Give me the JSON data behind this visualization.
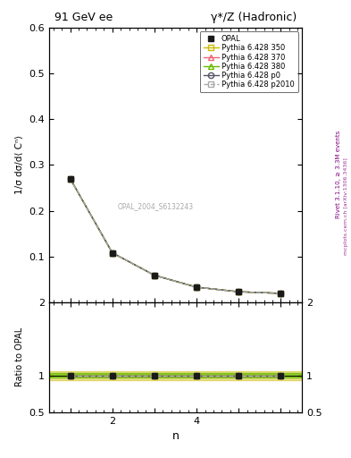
{
  "title_left": "91 GeV ee",
  "title_right": "γ*/Z (Hadronic)",
  "ylabel_main": "1/σ dσ/d⟨ Cⁿ⟩",
  "ylabel_ratio": "Ratio to OPAL",
  "xlabel": "n",
  "rivet_label": "Rivet 3.1.10, ≥ 3.3M events",
  "watermark": "mcplots.cern.ch [arXiv:1306.3436]",
  "ref_label": "OPAL_2004_S6132243",
  "n_values": [
    1,
    2,
    3,
    4,
    5,
    6
  ],
  "opal_y": [
    0.27,
    0.108,
    0.059,
    0.033,
    0.023,
    0.0195
  ],
  "opal_yerr": [
    0.004,
    0.002,
    0.001,
    0.0008,
    0.0006,
    0.0005
  ],
  "py350_y": [
    0.27,
    0.108,
    0.059,
    0.033,
    0.023,
    0.0195
  ],
  "py370_y": [
    0.27,
    0.108,
    0.059,
    0.033,
    0.023,
    0.0195
  ],
  "py380_y": [
    0.27,
    0.108,
    0.059,
    0.033,
    0.023,
    0.0195
  ],
  "pyp0_y": [
    0.27,
    0.108,
    0.059,
    0.033,
    0.023,
    0.0195
  ],
  "pyp2010_y": [
    0.27,
    0.108,
    0.059,
    0.033,
    0.023,
    0.0195
  ],
  "ratio_py350": [
    1.0,
    1.0,
    1.0,
    1.0,
    1.0,
    1.0
  ],
  "ratio_py370": [
    1.0,
    1.0,
    1.0,
    1.0,
    1.0,
    1.0
  ],
  "ratio_py380": [
    1.0,
    1.0,
    1.0,
    1.0,
    1.0,
    1.0
  ],
  "ratio_pyp0": [
    1.0,
    1.0,
    1.0,
    1.0,
    1.0,
    1.0
  ],
  "ratio_pyp2010": [
    1.0,
    1.0,
    1.0,
    1.0,
    1.0,
    1.0
  ],
  "color_opal": "#1a1a1a",
  "color_py350": "#ccbb00",
  "color_py370": "#ee6677",
  "color_py380": "#66bb00",
  "color_pyp0": "#555566",
  "color_pyp2010": "#aaaaaa",
  "ylim_main": [
    0.0,
    0.6
  ],
  "ylim_ratio": [
    0.5,
    2.0
  ],
  "yticks_main": [
    0.1,
    0.2,
    0.3,
    0.4,
    0.5,
    0.6
  ],
  "yticks_ratio": [
    0.5,
    1.0,
    2.0
  ],
  "xlim": [
    0.5,
    6.5
  ],
  "xticks": [
    1,
    2,
    3,
    4,
    5,
    6
  ],
  "band_outer_lo": 0.94,
  "band_outer_hi": 1.06,
  "band_inner_lo": 0.97,
  "band_inner_hi": 1.03
}
